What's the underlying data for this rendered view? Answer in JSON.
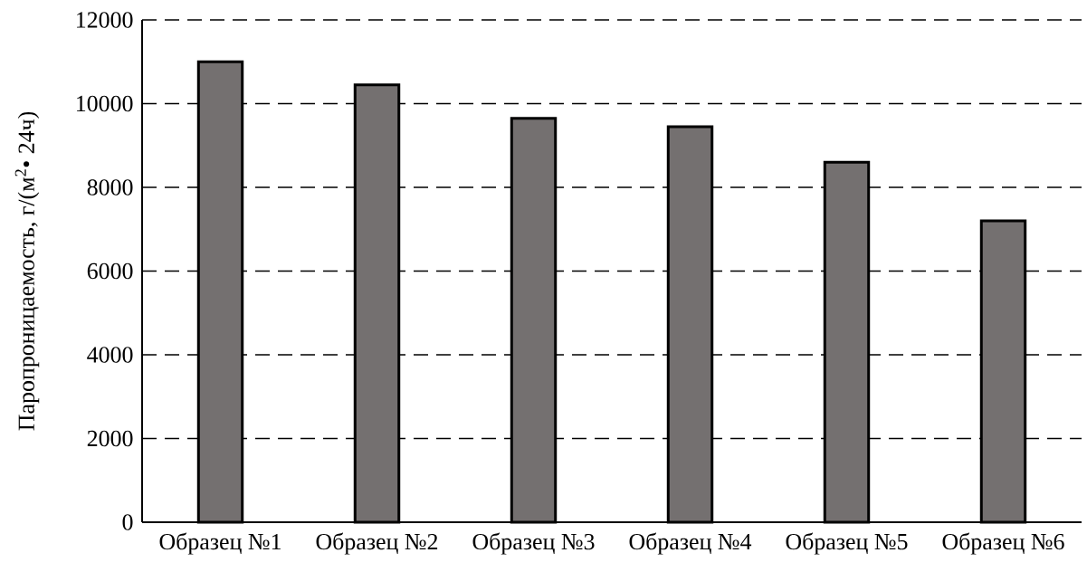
{
  "chart_data": {
    "type": "bar",
    "ylabel": "Паропроницаемость, г/(м$^{2}$• 24ч)",
    "categories": [
      "Образец №1",
      "Образец №2",
      "Образец №3",
      "Образец №4",
      "Образец №5",
      "Образец №6"
    ],
    "values": [
      11000,
      10450,
      9650,
      9450,
      8600,
      7200
    ],
    "color": "#747070",
    "ylim": [
      0,
      12000
    ],
    "yticks": [
      0,
      2000,
      4000,
      6000,
      8000,
      10000,
      12000
    ],
    "grid": "y"
  }
}
